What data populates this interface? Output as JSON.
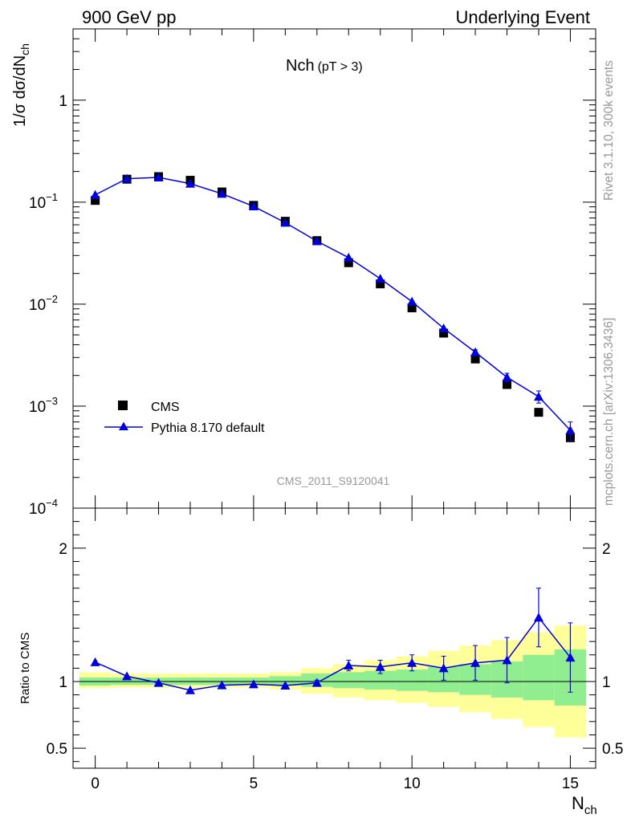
{
  "header": {
    "left_label": "900 GeV pp",
    "right_label": "Underlying Event"
  },
  "side": {
    "rivet_label": "Rivet 3.1.10,  300k events",
    "mcplots_label": "mcplots.cern.ch [arXiv:1306.3436]"
  },
  "colors": {
    "mc_line": "#0000dd",
    "band_inner": "#90ee90",
    "band_outer": "#ffff99",
    "data_marker": "#000000",
    "watermark": "#999999"
  },
  "chart_data": [
    {
      "type": "line",
      "title": "Nch",
      "title_sub": "(pT >  3)",
      "ylabel": "1/σ dσ/dN",
      "ylabel_sub": "ch",
      "yscale": "log",
      "ylim": [
        0.0001,
        5
      ],
      "xlim": [
        -0.7,
        15.8
      ],
      "y_ticks": [
        {
          "value": 1,
          "base": "1",
          "exp": ""
        },
        {
          "value": 0.1,
          "base": "10",
          "exp": "−1"
        },
        {
          "value": 0.01,
          "base": "10",
          "exp": "−2"
        },
        {
          "value": 0.001,
          "base": "10",
          "exp": "−3"
        },
        {
          "value": 0.0001,
          "base": "10",
          "exp": "−4"
        }
      ],
      "watermark": "CMS_2011_S9120041",
      "legend": {
        "position": "lower-left",
        "data_label": "CMS",
        "mc_label": "Pythia 8.170 default"
      },
      "series": [
        {
          "name": "CMS",
          "marker": "square",
          "x": [
            0,
            1,
            2,
            3,
            4,
            5,
            6,
            7,
            8,
            9,
            10,
            11,
            12,
            13,
            14,
            15
          ],
          "y": [
            0.104,
            0.168,
            0.178,
            0.164,
            0.126,
            0.093,
            0.065,
            0.042,
            0.0255,
            0.0158,
            0.0092,
            0.0052,
            0.0029,
            0.00163,
            0.00087,
            0.00049
          ]
        },
        {
          "name": "Pythia 8.170 default",
          "marker": "triangle",
          "x": [
            0,
            1,
            2,
            3,
            4,
            5,
            6,
            7,
            8,
            9,
            10,
            11,
            12,
            13,
            14,
            15
          ],
          "y": [
            0.118,
            0.17,
            0.175,
            0.152,
            0.121,
            0.091,
            0.063,
            0.0415,
            0.0286,
            0.0178,
            0.0106,
            0.0058,
            0.00338,
            0.00192,
            0.00124,
            0.00058
          ],
          "err": [
            0.002,
            0.002,
            0.002,
            0.002,
            0.002,
            0.001,
            0.001,
            0.0008,
            0.0005,
            0.0004,
            0.0003,
            0.0002,
            0.0002,
            0.00018,
            0.00017,
            0.00012
          ]
        }
      ]
    },
    {
      "type": "line",
      "ylabel": "Ratio to CMS",
      "xlabel": "N",
      "xlabel_sub": "ch",
      "ylim": [
        0.35,
        2.3
      ],
      "xlim": [
        -0.7,
        15.8
      ],
      "x_ticks": [
        0,
        5,
        10,
        15
      ],
      "y_ticks": [
        0.5,
        1,
        2
      ],
      "y_tick_labels": [
        "0.5",
        "1",
        "2"
      ],
      "bands": {
        "x_edges": [
          -0.5,
          0.5,
          1.5,
          2.5,
          3.5,
          4.5,
          5.5,
          6.5,
          7.5,
          8.5,
          9.5,
          10.5,
          11.5,
          12.5,
          13.5,
          14.5,
          15.5
        ],
        "inner_lo": [
          0.97,
          0.975,
          0.975,
          0.975,
          0.975,
          0.975,
          0.97,
          0.96,
          0.95,
          0.94,
          0.93,
          0.92,
          0.9,
          0.88,
          0.86,
          0.82
        ],
        "inner_hi": [
          1.03,
          1.03,
          1.03,
          1.03,
          1.03,
          1.03,
          1.04,
          1.06,
          1.07,
          1.08,
          1.09,
          1.11,
          1.13,
          1.15,
          1.2,
          1.24
        ],
        "outer_lo": [
          0.95,
          0.955,
          0.955,
          0.955,
          0.955,
          0.955,
          0.94,
          0.91,
          0.88,
          0.86,
          0.84,
          0.81,
          0.77,
          0.72,
          0.66,
          0.58
        ],
        "outer_hi": [
          1.07,
          1.06,
          1.06,
          1.06,
          1.06,
          1.06,
          1.07,
          1.1,
          1.13,
          1.16,
          1.19,
          1.23,
          1.27,
          1.31,
          1.37,
          1.42
        ]
      },
      "series": [
        {
          "name": "Pythia 8.170 default",
          "x": [
            0,
            1,
            2,
            3,
            4,
            5,
            6,
            7,
            8,
            9,
            10,
            11,
            12,
            13,
            14,
            15
          ],
          "y": [
            1.145,
            1.04,
            0.99,
            0.935,
            0.972,
            0.98,
            0.97,
            0.99,
            1.12,
            1.11,
            1.14,
            1.1,
            1.14,
            1.16,
            1.48,
            1.18
          ],
          "err": [
            0.01,
            0.01,
            0.01,
            0.01,
            0.01,
            0.01,
            0.01,
            0.02,
            0.04,
            0.05,
            0.06,
            0.09,
            0.13,
            0.17,
            0.22,
            0.26
          ]
        }
      ]
    }
  ]
}
